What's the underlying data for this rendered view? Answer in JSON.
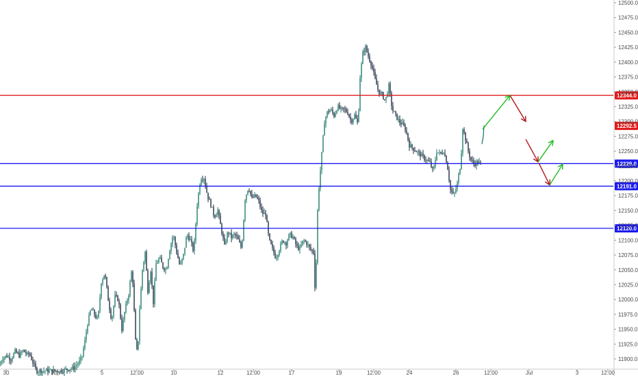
{
  "chart_data": {
    "type": "candlestick",
    "y_axis": {
      "range": [
        11895,
        12500
      ],
      "ticks": [
        "12500.0",
        "12475.0",
        "12450.0",
        "12425.0",
        "12400.0",
        "12375.0",
        "12350.0",
        "12325.0",
        "12300.0",
        "12275.0",
        "12250.0",
        "12225.0",
        "12200.0",
        "12175.0",
        "12150.0",
        "12125.0",
        "12100.0",
        "12075.0",
        "12050.0",
        "12025.0",
        "12000.0",
        "11975.0",
        "11950.0",
        "11925.0",
        "11900.0"
      ],
      "tick_values": [
        12500,
        12475,
        12450,
        12425,
        12400,
        12375,
        12350,
        12325,
        12300,
        12275,
        12250,
        12225,
        12200,
        12175,
        12150,
        12125,
        12100,
        12075,
        12050,
        12025,
        12000,
        11975,
        11950,
        11925,
        11900
      ]
    },
    "x_axis": {
      "range": [
        0,
        924
      ],
      "labels": [
        "30",
        "Jun",
        "5",
        "12:00",
        "10",
        "12",
        "12:00",
        "17",
        "19",
        "12:00",
        "24",
        "26",
        "12:00",
        "Jul",
        "3",
        "12:00"
      ],
      "label_positions": [
        9,
        81,
        149,
        200,
        254,
        322,
        370,
        426,
        495,
        546,
        598,
        666,
        717,
        773,
        843,
        888
      ]
    },
    "horizontal_lines": [
      {
        "price": 12344.0,
        "label": "12344.0",
        "color": "#e01b1b"
      },
      {
        "price": 12229.0,
        "label": "12229.0",
        "color": "#1a1aee"
      },
      {
        "price": 12191.0,
        "label": "12191.0",
        "color": "#1a1aee"
      },
      {
        "price": 12120.0,
        "label": "12120.0",
        "color": "#1a1aee"
      }
    ],
    "current_price": {
      "price": 12292.5,
      "label": "12292.5",
      "color": "#e01b1b"
    },
    "price_path": [
      [
        0,
        11888
      ],
      [
        6,
        11902
      ],
      [
        12,
        11905
      ],
      [
        18,
        11900
      ],
      [
        24,
        11912
      ],
      [
        30,
        11906
      ],
      [
        36,
        11914
      ],
      [
        42,
        11907
      ],
      [
        45,
        11909
      ],
      [
        55,
        11880
      ],
      [
        70,
        11880
      ],
      [
        90,
        11880
      ],
      [
        110,
        11885
      ],
      [
        118,
        11895
      ],
      [
        122,
        11905
      ],
      [
        126,
        11930
      ],
      [
        130,
        11960
      ],
      [
        135,
        11985
      ],
      [
        140,
        11975
      ],
      [
        145,
        11965
      ],
      [
        150,
        12030
      ],
      [
        155,
        12045
      ],
      [
        160,
        12000
      ],
      [
        165,
        11965
      ],
      [
        170,
        12005
      ],
      [
        175,
        12000
      ],
      [
        180,
        11950
      ],
      [
        185,
        11985
      ],
      [
        190,
        12010
      ],
      [
        195,
        12055
      ],
      [
        200,
        11930
      ],
      [
        203,
        11905
      ],
      [
        206,
        11985
      ],
      [
        210,
        12050
      ],
      [
        214,
        12080
      ],
      [
        218,
        12015
      ],
      [
        222,
        12050
      ],
      [
        226,
        11995
      ],
      [
        230,
        12060
      ],
      [
        235,
        12070
      ],
      [
        240,
        12055
      ],
      [
        245,
        12050
      ],
      [
        250,
        12085
      ],
      [
        255,
        12110
      ],
      [
        260,
        12080
      ],
      [
        265,
        12055
      ],
      [
        270,
        12075
      ],
      [
        275,
        12110
      ],
      [
        280,
        12100
      ],
      [
        285,
        12080
      ],
      [
        290,
        12160
      ],
      [
        295,
        12205
      ],
      [
        300,
        12205
      ],
      [
        305,
        12175
      ],
      [
        310,
        12160
      ],
      [
        315,
        12140
      ],
      [
        320,
        12150
      ],
      [
        325,
        12120
      ],
      [
        330,
        12090
      ],
      [
        335,
        12115
      ],
      [
        340,
        12105
      ],
      [
        345,
        12110
      ],
      [
        350,
        12100
      ],
      [
        355,
        12085
      ],
      [
        360,
        12170
      ],
      [
        365,
        12190
      ],
      [
        370,
        12170
      ],
      [
        375,
        12175
      ],
      [
        380,
        12165
      ],
      [
        385,
        12145
      ],
      [
        390,
        12145
      ],
      [
        395,
        12100
      ],
      [
        400,
        12085
      ],
      [
        405,
        12070
      ],
      [
        410,
        12085
      ],
      [
        415,
        12100
      ],
      [
        420,
        12095
      ],
      [
        425,
        12110
      ],
      [
        430,
        12105
      ],
      [
        435,
        12090
      ],
      [
        440,
        12085
      ],
      [
        445,
        12100
      ],
      [
        450,
        12095
      ],
      [
        455,
        12085
      ],
      [
        460,
        12080
      ],
      [
        463,
        11995
      ],
      [
        465,
        12130
      ],
      [
        468,
        12190
      ],
      [
        472,
        12245
      ],
      [
        476,
        12300
      ],
      [
        480,
        12315
      ],
      [
        485,
        12320
      ],
      [
        490,
        12310
      ],
      [
        495,
        12325
      ],
      [
        500,
        12320
      ],
      [
        505,
        12320
      ],
      [
        510,
        12315
      ],
      [
        515,
        12300
      ],
      [
        520,
        12310
      ],
      [
        525,
        12295
      ],
      [
        528,
        12375
      ],
      [
        532,
        12415
      ],
      [
        536,
        12425
      ],
      [
        540,
        12410
      ],
      [
        545,
        12395
      ],
      [
        550,
        12370
      ],
      [
        555,
        12350
      ],
      [
        560,
        12345
      ],
      [
        565,
        12335
      ],
      [
        570,
        12360
      ],
      [
        575,
        12320
      ],
      [
        580,
        12310
      ],
      [
        585,
        12300
      ],
      [
        590,
        12295
      ],
      [
        595,
        12285
      ],
      [
        600,
        12260
      ],
      [
        605,
        12255
      ],
      [
        610,
        12250
      ],
      [
        615,
        12245
      ],
      [
        620,
        12240
      ],
      [
        625,
        12235
      ],
      [
        630,
        12230
      ],
      [
        635,
        12215
      ],
      [
        640,
        12250
      ],
      [
        645,
        12245
      ],
      [
        650,
        12250
      ],
      [
        655,
        12230
      ],
      [
        660,
        12185
      ],
      [
        665,
        12175
      ],
      [
        670,
        12195
      ],
      [
        675,
        12230
      ],
      [
        678,
        12290
      ],
      [
        682,
        12270
      ],
      [
        686,
        12250
      ],
      [
        690,
        12235
      ],
      [
        695,
        12228
      ],
      [
        700,
        12232
      ],
      [
        703,
        12229
      ]
    ],
    "post_segment": [
      [
        704,
        12262
      ],
      [
        706,
        12275
      ],
      [
        707,
        12293
      ]
    ],
    "arrows": [
      {
        "from": [
          705,
          12287
        ],
        "to": [
          745,
          12344
        ],
        "color": "#22bb22"
      },
      {
        "from": [
          745,
          12344
        ],
        "to": [
          768,
          12300
        ],
        "color": "#b3141b"
      },
      {
        "from": [
          768,
          12270
        ],
        "to": [
          786,
          12232
        ],
        "color": "#b3141b"
      },
      {
        "from": [
          786,
          12232
        ],
        "to": [
          808,
          12268
        ],
        "color": "#22bb22"
      },
      {
        "from": [
          787,
          12230
        ],
        "to": [
          803,
          12193
        ],
        "color": "#b3141b"
      },
      {
        "from": [
          803,
          12193
        ],
        "to": [
          822,
          12228
        ],
        "color": "#22bb22"
      }
    ]
  }
}
